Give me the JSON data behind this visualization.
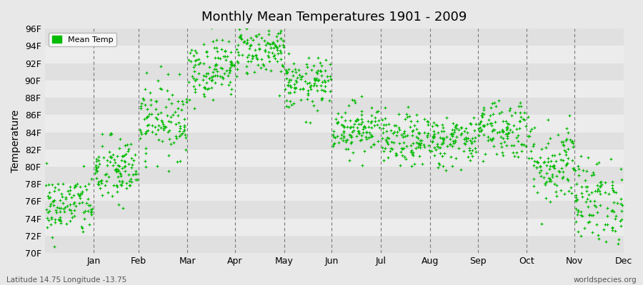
{
  "title": "Monthly Mean Temperatures 1901 - 2009",
  "ylabel": "Temperature",
  "ylim": [
    70,
    96
  ],
  "yticks": [
    70,
    72,
    74,
    76,
    78,
    80,
    82,
    84,
    86,
    88,
    90,
    92,
    94,
    96
  ],
  "ytick_labels": [
    "70F",
    "72F",
    "74F",
    "76F",
    "78F",
    "80F",
    "82F",
    "84F",
    "86F",
    "88F",
    "90F",
    "92F",
    "94F",
    "96F"
  ],
  "months": [
    "Jan",
    "Feb",
    "Mar",
    "Apr",
    "May",
    "Jun",
    "Jul",
    "Aug",
    "Sep",
    "Oct",
    "Nov",
    "Dec"
  ],
  "month_days": [
    31,
    28,
    31,
    30,
    31,
    30,
    31,
    31,
    30,
    31,
    30,
    31
  ],
  "dot_color": "#00bb00",
  "bg_color": "#e8e8e8",
  "band_colors": [
    "#e0e0e0",
    "#ececec"
  ],
  "legend_label": "Mean Temp",
  "footer_left": "Latitude 14.75 Longitude -13.75",
  "footer_right": "worldspecies.org",
  "n_years": 109,
  "year_start": 1901,
  "monthly_mean": [
    75.5,
    79.5,
    85.5,
    91.5,
    93.5,
    89.5,
    84.5,
    83.0,
    83.0,
    84.5,
    80.5,
    76.0
  ],
  "monthly_std": [
    1.8,
    2.0,
    2.2,
    1.8,
    1.5,
    1.5,
    1.5,
    1.5,
    1.5,
    1.8,
    2.5,
    2.5
  ],
  "seed": 42
}
